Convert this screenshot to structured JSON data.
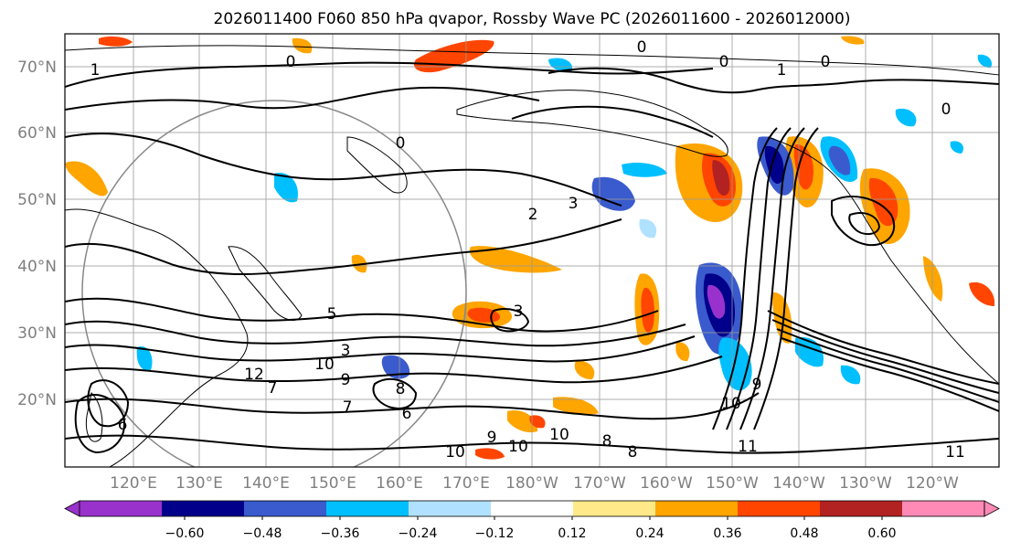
{
  "title": "2026011400 F060 850 hPa qvapor, Rossby Wave PC (2026011600 - 2026012000)",
  "map": {
    "lat_labels": [
      "70°N",
      "60°N",
      "50°N",
      "40°N",
      "30°N",
      "20°N"
    ],
    "lon_labels": [
      "120°E",
      "130°E",
      "140°E",
      "150°E",
      "160°E",
      "170°E",
      "180°W",
      "170°W",
      "160°W",
      "150°W",
      "140°W",
      "130°W",
      "120°W"
    ],
    "contour_labels": [
      "1",
      "0",
      "0",
      "1",
      "0",
      "0",
      "0",
      "0",
      "3",
      "2",
      "3",
      "5",
      "3",
      "8",
      "10",
      "9",
      "7",
      "6",
      "7",
      "10",
      "12",
      "9",
      "6",
      "8",
      "10",
      "10",
      "9",
      "10",
      "11",
      "8",
      "11"
    ]
  },
  "colorbar": {
    "ticks": [
      "−0.60",
      "−0.48",
      "−0.36",
      "−0.24",
      "−0.12",
      "0.12",
      "0.24",
      "0.36",
      "0.48",
      "0.60"
    ],
    "colors": {
      "under": "#9932cc",
      "bins": [
        "#9932cc",
        "#00008b",
        "#3a5bcd",
        "#00bfff",
        "#b0e2ff",
        "#ffffff",
        "#ffe989",
        "#ffa500",
        "#ff4500",
        "#b22222"
      ],
      "over": "#ff8ab5"
    }
  }
}
